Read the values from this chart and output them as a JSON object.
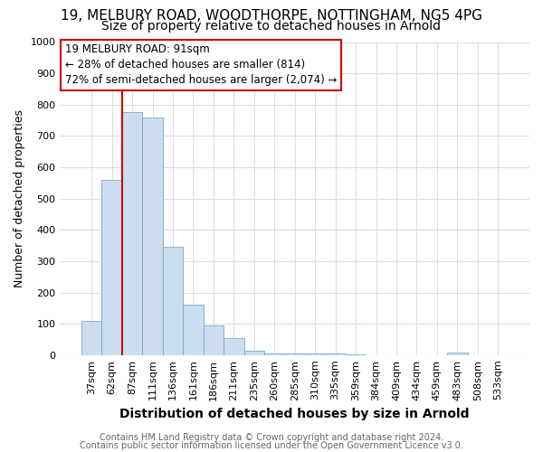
{
  "title1": "19, MELBURY ROAD, WOODTHORPE, NOTTINGHAM, NG5 4PG",
  "title2": "Size of property relative to detached houses in Arnold",
  "xlabel": "Distribution of detached houses by size in Arnold",
  "ylabel": "Number of detached properties",
  "categories": [
    "37sqm",
    "62sqm",
    "87sqm",
    "111sqm",
    "136sqm",
    "161sqm",
    "186sqm",
    "211sqm",
    "235sqm",
    "260sqm",
    "285sqm",
    "310sqm",
    "335sqm",
    "359sqm",
    "384sqm",
    "409sqm",
    "434sqm",
    "459sqm",
    "483sqm",
    "508sqm",
    "533sqm"
  ],
  "values": [
    110,
    560,
    775,
    760,
    345,
    160,
    95,
    55,
    15,
    5,
    5,
    5,
    5,
    3,
    0,
    0,
    0,
    0,
    8,
    0,
    0
  ],
  "bar_color": "#ccddf0",
  "bar_edge_color": "#7aabcc",
  "property_line_color": "#cc0000",
  "property_line_bin": 2,
  "annotation_text": "19 MELBURY ROAD: 91sqm\n← 28% of detached houses are smaller (814)\n72% of semi-detached houses are larger (2,074) →",
  "annotation_box_facecolor": "#ffffff",
  "annotation_box_edgecolor": "#cc0000",
  "ylim": [
    0,
    1000
  ],
  "yticks": [
    0,
    100,
    200,
    300,
    400,
    500,
    600,
    700,
    800,
    900,
    1000
  ],
  "footer1": "Contains HM Land Registry data © Crown copyright and database right 2024.",
  "footer2": "Contains public sector information licensed under the Open Government Licence v3.0.",
  "background_color": "#ffffff",
  "plot_background_color": "#ffffff",
  "grid_color": "#dddddd",
  "title1_fontsize": 11,
  "title2_fontsize": 10,
  "xlabel_fontsize": 10,
  "ylabel_fontsize": 9,
  "tick_fontsize": 8,
  "annotation_fontsize": 8.5,
  "footer_fontsize": 7
}
